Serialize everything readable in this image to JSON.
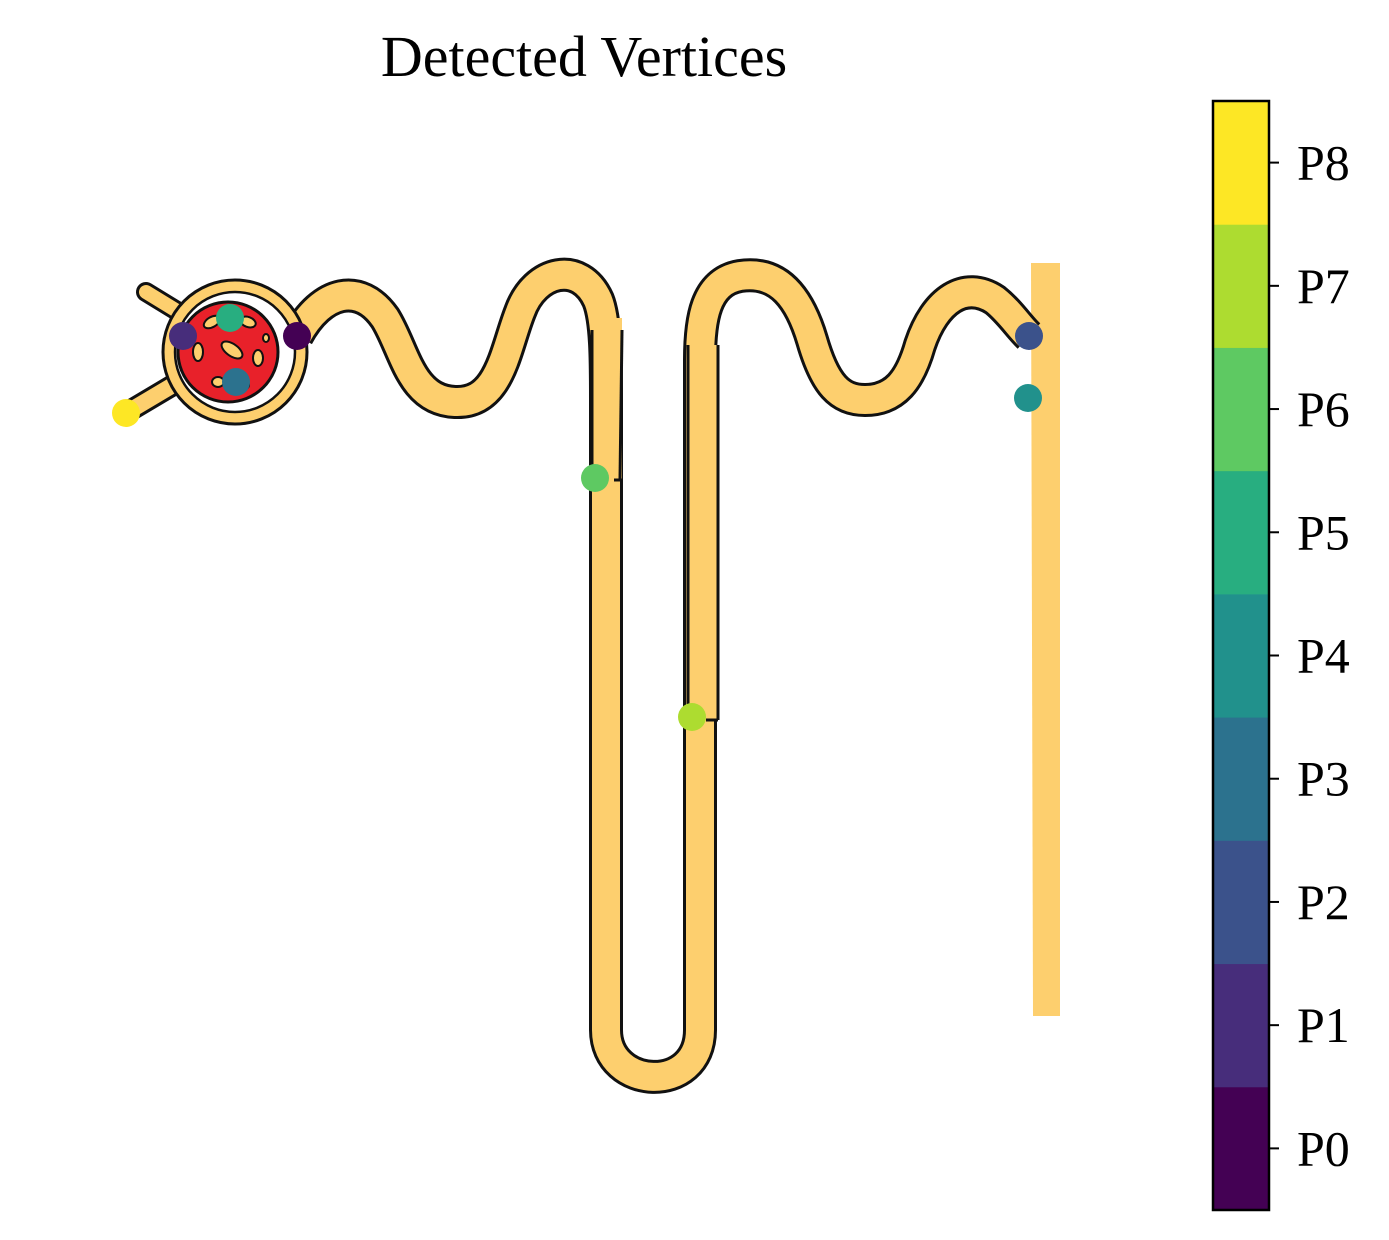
{
  "title": "Detected Vertices",
  "colorbar": {
    "ticks": [
      {
        "label": "P0",
        "color": "#440154"
      },
      {
        "label": "P1",
        "color": "#472d7b"
      },
      {
        "label": "P2",
        "color": "#3b528b"
      },
      {
        "label": "P3",
        "color": "#2c728e"
      },
      {
        "label": "P4",
        "color": "#21918c"
      },
      {
        "label": "P5",
        "color": "#28ae80"
      },
      {
        "label": "P6",
        "color": "#5ec962"
      },
      {
        "label": "P7",
        "color": "#addc30"
      },
      {
        "label": "P8",
        "color": "#fde725"
      }
    ]
  },
  "vertices": [
    {
      "label": "P0",
      "color": "#440154"
    },
    {
      "label": "P1",
      "color": "#472d7b"
    },
    {
      "label": "P2",
      "color": "#3b528b"
    },
    {
      "label": "P3",
      "color": "#2c728e"
    },
    {
      "label": "P4",
      "color": "#21918c"
    },
    {
      "label": "P5",
      "color": "#28ae80"
    },
    {
      "label": "P6",
      "color": "#5ec962"
    },
    {
      "label": "P7",
      "color": "#addc30"
    },
    {
      "label": "P8",
      "color": "#fde725"
    }
  ],
  "colors": {
    "tubule_fill": "#fdcf6e",
    "tubule_outline": "#111111",
    "glomerulus": "#e8212a",
    "collecting_duct": "#fdcf6e"
  }
}
